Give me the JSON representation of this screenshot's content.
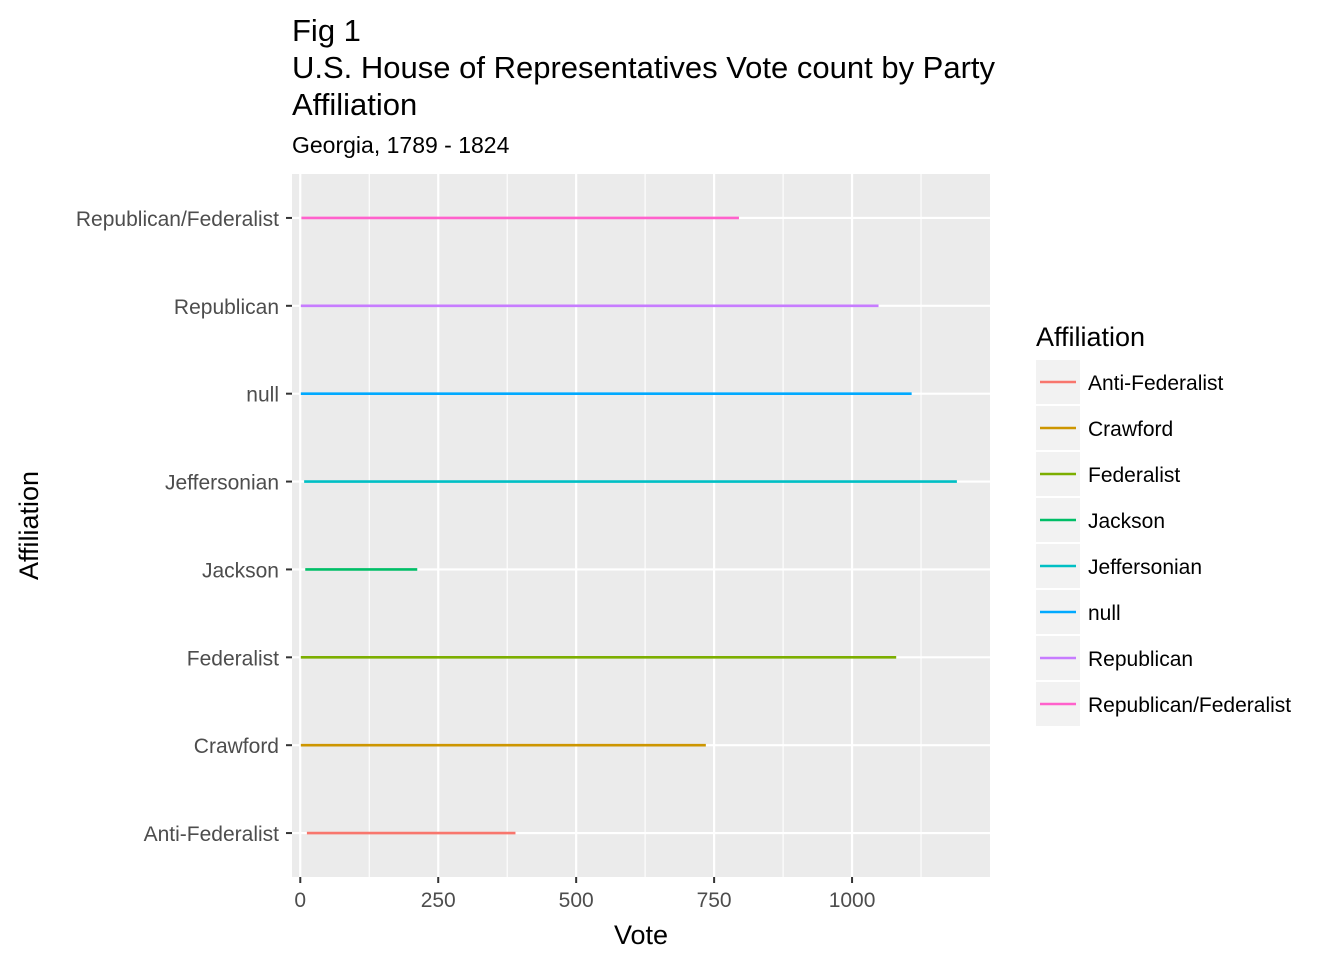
{
  "chart_data": {
    "type": "line",
    "title_lines": [
      "Fig 1",
      "U.S. House of Representatives Vote count by Party",
      "Affiliation"
    ],
    "subtitle": "Georgia, 1789 - 1824",
    "xlabel": "Vote",
    "ylabel": "Affiliation",
    "xlim": [
      -15,
      1250
    ],
    "x_ticks": [
      0,
      250,
      500,
      750,
      1000
    ],
    "x_tick_labels": [
      "0",
      "250",
      "500",
      "750",
      "1000"
    ],
    "categories": [
      "Anti-Federalist",
      "Crawford",
      "Federalist",
      "Jackson",
      "Jeffersonian",
      "null",
      "Republican",
      "Republican/Federalist"
    ],
    "grid": true,
    "legend_position": "right",
    "legend_title": "Affiliation",
    "series": [
      {
        "name": "Anti-Federalist",
        "color": "#F8766D",
        "min": 12,
        "max": 390
      },
      {
        "name": "Crawford",
        "color": "#CD9600",
        "min": 1,
        "max": 735
      },
      {
        "name": "Federalist",
        "color": "#7CAE00",
        "min": 1,
        "max": 1080
      },
      {
        "name": "Jackson",
        "color": "#00BE67",
        "min": 9,
        "max": 212
      },
      {
        "name": "Jeffersonian",
        "color": "#00BFC4",
        "min": 7,
        "max": 1190
      },
      {
        "name": "null",
        "color": "#00A9FF",
        "min": 1,
        "max": 1108
      },
      {
        "name": "Republican",
        "color": "#C77CFF",
        "min": 1,
        "max": 1048
      },
      {
        "name": "Republican/Federalist",
        "color": "#FF61CC",
        "min": 2,
        "max": 795
      }
    ]
  }
}
